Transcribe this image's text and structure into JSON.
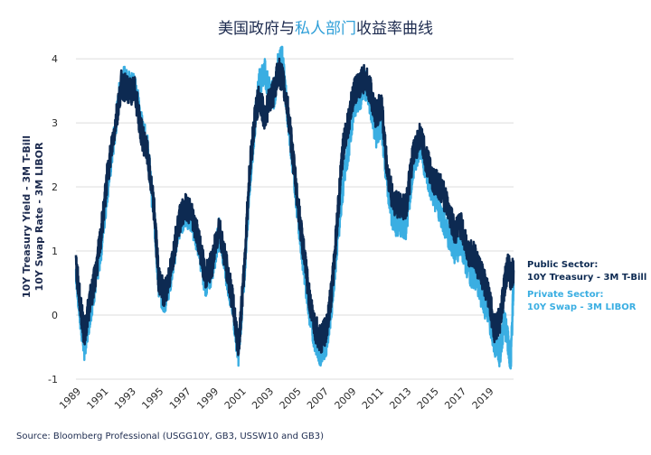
{
  "chart_data": {
    "type": "line",
    "title_parts": [
      "美国政府与",
      "私人部门",
      "收益率曲线"
    ],
    "ylabel_lines": [
      "10Y Treasury Yield - 3M T-Bill",
      "10Y Swap Rate - 3M LIBOR"
    ],
    "source": "Source: Bloomberg Professional (USGG10Y, GB3, USSW10 and GB3)",
    "xlim": [
      1989,
      2020.8
    ],
    "ylim": [
      -1,
      4.1
    ],
    "yticks": [
      -1,
      0,
      1,
      2,
      3,
      4
    ],
    "xticks": [
      "1989",
      "1991",
      "1993",
      "1995",
      "1997",
      "1999",
      "2001",
      "2003",
      "2005",
      "2007",
      "2009",
      "2011",
      "2013",
      "2015",
      "2017",
      "2019"
    ],
    "grid": "horizontal",
    "legend_position": "right",
    "series": [
      {
        "name": "Public Sector:\n10Y Treasury - 3M T-Bill",
        "color": "#0d2a52",
        "x": [
          1989.0,
          1989.3,
          1989.6,
          1990.0,
          1990.4,
          1990.8,
          1991.3,
          1991.8,
          1992.3,
          1992.8,
          1993.3,
          1993.7,
          1994.2,
          1994.7,
          1995.0,
          1995.4,
          1995.9,
          1996.4,
          1996.9,
          1997.4,
          1997.9,
          1998.4,
          1998.9,
          1999.4,
          1999.9,
          2000.4,
          2000.8,
          2001.2,
          2001.6,
          2002.0,
          2002.3,
          2002.7,
          2003.0,
          2003.4,
          2003.7,
          2004.0,
          2004.4,
          2004.8,
          2005.2,
          2005.6,
          2006.0,
          2006.4,
          2006.8,
          2007.2,
          2007.6,
          2008.0,
          2008.4,
          2008.8,
          2009.2,
          2009.6,
          2010.0,
          2010.4,
          2010.8,
          2011.2,
          2011.6,
          2012.0,
          2012.5,
          2013.0,
          2013.5,
          2014.0,
          2014.5,
          2015.0,
          2015.5,
          2016.0,
          2016.5,
          2017.0,
          2017.5,
          2018.0,
          2018.5,
          2019.0,
          2019.4,
          2019.8,
          2020.1,
          2020.4,
          2020.6,
          2020.8
        ],
        "values": [
          0.8,
          0.2,
          -0.3,
          0.2,
          0.6,
          1.2,
          2.2,
          2.9,
          3.6,
          3.5,
          3.5,
          2.9,
          2.5,
          1.6,
          0.6,
          0.3,
          0.7,
          1.4,
          1.7,
          1.6,
          1.2,
          0.6,
          0.8,
          1.4,
          0.8,
          0.2,
          -0.5,
          0.6,
          2.2,
          3.1,
          3.4,
          3.1,
          3.3,
          3.5,
          3.8,
          3.7,
          3.2,
          2.4,
          1.6,
          0.9,
          0.2,
          -0.2,
          -0.4,
          -0.2,
          0.4,
          1.5,
          2.6,
          3.0,
          3.5,
          3.6,
          3.7,
          3.5,
          3.1,
          3.3,
          2.3,
          1.8,
          1.7,
          1.7,
          2.5,
          2.8,
          2.4,
          2.1,
          2.0,
          1.7,
          1.3,
          1.4,
          1.0,
          0.9,
          0.6,
          0.3,
          -0.2,
          -0.1,
          0.4,
          0.8,
          0.6,
          0.7
        ]
      },
      {
        "name": "Private Sector:\n10Y Swap - 3M LIBOR",
        "color": "#3aaee2",
        "x": [
          1989.0,
          1989.3,
          1989.6,
          1990.0,
          1990.4,
          1990.8,
          1991.3,
          1991.8,
          1992.3,
          1992.8,
          1993.3,
          1993.7,
          1994.2,
          1994.7,
          1995.0,
          1995.4,
          1995.9,
          1996.4,
          1996.9,
          1997.4,
          1997.9,
          1998.4,
          1998.9,
          1999.4,
          1999.9,
          2000.4,
          2000.8,
          2001.2,
          2001.6,
          2002.0,
          2002.3,
          2002.7,
          2003.0,
          2003.4,
          2003.7,
          2004.0,
          2004.4,
          2004.8,
          2005.2,
          2005.6,
          2006.0,
          2006.4,
          2006.8,
          2007.2,
          2007.6,
          2008.0,
          2008.4,
          2008.8,
          2009.2,
          2009.6,
          2010.0,
          2010.4,
          2010.8,
          2011.2,
          2011.6,
          2012.0,
          2012.5,
          2013.0,
          2013.5,
          2014.0,
          2014.5,
          2015.0,
          2015.5,
          2016.0,
          2016.5,
          2017.0,
          2017.5,
          2018.0,
          2018.5,
          2019.0,
          2019.4,
          2019.8,
          2020.1,
          2020.4,
          2020.6,
          2020.8
        ],
        "values": [
          0.7,
          0.0,
          -0.5,
          0.0,
          0.5,
          1.0,
          2.0,
          2.8,
          3.7,
          3.6,
          3.6,
          3.0,
          2.6,
          1.5,
          0.5,
          0.2,
          0.6,
          1.3,
          1.6,
          1.5,
          1.1,
          0.5,
          0.7,
          1.3,
          0.7,
          0.1,
          -0.6,
          0.5,
          2.0,
          3.0,
          3.6,
          3.8,
          3.5,
          3.4,
          3.9,
          4.0,
          3.1,
          2.3,
          1.4,
          0.7,
          0.0,
          -0.4,
          -0.6,
          -0.4,
          0.2,
          1.2,
          2.0,
          2.6,
          3.3,
          3.4,
          3.6,
          3.3,
          2.8,
          3.0,
          2.1,
          1.5,
          1.4,
          1.4,
          2.3,
          2.7,
          2.2,
          1.9,
          1.6,
          1.3,
          1.0,
          1.1,
          0.7,
          0.6,
          0.3,
          0.0,
          -0.4,
          -0.6,
          -0.1,
          -0.4,
          -0.7,
          0.5
        ]
      }
    ]
  }
}
